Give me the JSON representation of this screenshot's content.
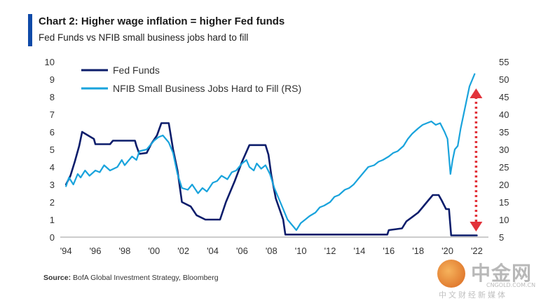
{
  "header": {
    "title": "Chart 2: Higher wage inflation = higher Fed funds",
    "subtitle": "Fed Funds vs NFIB small business jobs hard to fill"
  },
  "footer": {
    "source_label": "Source:",
    "source_text": "BofA Global Investment Strategy, Bloomberg"
  },
  "watermark": {
    "name": "中金网",
    "url": "CNGOLD.COM.CN",
    "tagline": "中文财经新媒体"
  },
  "colors": {
    "fed_funds": "#0c1d6b",
    "nfib": "#19a3dc",
    "arrow": "#e2323a",
    "accent": "#0f4aa8"
  },
  "chart_data": {
    "type": "line",
    "title": "Chart 2: Higher wage inflation = higher Fed funds",
    "subtitle": "Fed Funds vs NFIB small business jobs hard to fill",
    "x_ticks": [
      "'94",
      "'96",
      "'98",
      "'00",
      "'02",
      "'04",
      "'06",
      "'08",
      "'10",
      "'12",
      "'14",
      "'16",
      "'18",
      "'20",
      "'22"
    ],
    "x_tick_values": [
      1994,
      1996,
      1998,
      2000,
      2002,
      2004,
      2006,
      2008,
      2010,
      2012,
      2014,
      2016,
      2018,
      2020,
      2022
    ],
    "xlim": [
      1993.8,
      2022.6
    ],
    "y_left_ticks": [
      "0",
      "1",
      "2",
      "3",
      "4",
      "5",
      "6",
      "7",
      "8",
      "9",
      "10"
    ],
    "ylim_left": [
      0,
      10
    ],
    "y_right_ticks": [
      "5",
      "10",
      "15",
      "20",
      "25",
      "30",
      "35",
      "40",
      "45",
      "50",
      "55"
    ],
    "ylim_right": [
      5,
      55
    ],
    "grid": false,
    "legend_position": "top-left",
    "series": [
      {
        "name": "Fed Funds",
        "axis": "left",
        "points": [
          [
            1994.0,
            3.0
          ],
          [
            1994.3,
            3.5
          ],
          [
            1994.6,
            4.3
          ],
          [
            1994.9,
            5.2
          ],
          [
            1995.1,
            6.0
          ],
          [
            1995.5,
            5.8
          ],
          [
            1995.9,
            5.6
          ],
          [
            1996.0,
            5.3
          ],
          [
            1997.0,
            5.3
          ],
          [
            1997.2,
            5.5
          ],
          [
            1998.0,
            5.5
          ],
          [
            1998.7,
            5.5
          ],
          [
            1998.8,
            5.2
          ],
          [
            1999.0,
            4.75
          ],
          [
            1999.5,
            4.8
          ],
          [
            1999.8,
            5.3
          ],
          [
            2000.2,
            5.8
          ],
          [
            2000.5,
            6.5
          ],
          [
            2001.0,
            6.5
          ],
          [
            2001.3,
            5.0
          ],
          [
            2001.6,
            3.8
          ],
          [
            2001.9,
            2.0
          ],
          [
            2002.5,
            1.75
          ],
          [
            2002.9,
            1.25
          ],
          [
            2003.5,
            1.0
          ],
          [
            2004.5,
            1.0
          ],
          [
            2004.9,
            2.0
          ],
          [
            2005.5,
            3.2
          ],
          [
            2006.0,
            4.3
          ],
          [
            2006.5,
            5.25
          ],
          [
            2007.6,
            5.25
          ],
          [
            2007.8,
            4.7
          ],
          [
            2008.0,
            3.5
          ],
          [
            2008.3,
            2.2
          ],
          [
            2008.8,
            1.0
          ],
          [
            2008.95,
            0.15
          ],
          [
            2015.9,
            0.15
          ],
          [
            2016.0,
            0.4
          ],
          [
            2016.9,
            0.5
          ],
          [
            2017.2,
            0.9
          ],
          [
            2017.6,
            1.15
          ],
          [
            2018.0,
            1.4
          ],
          [
            2018.3,
            1.7
          ],
          [
            2018.6,
            2.0
          ],
          [
            2018.9,
            2.3
          ],
          [
            2019.0,
            2.4
          ],
          [
            2019.4,
            2.4
          ],
          [
            2019.6,
            2.1
          ],
          [
            2019.9,
            1.6
          ],
          [
            2020.1,
            1.6
          ],
          [
            2020.25,
            0.1
          ],
          [
            2022.0,
            0.1
          ]
        ]
      },
      {
        "name": "NFIB Small Business Jobs Hard to Fill (RS)",
        "axis": "right",
        "points": [
          [
            1994.0,
            19.5
          ],
          [
            1994.2,
            22.0
          ],
          [
            1994.5,
            20.0
          ],
          [
            1994.8,
            23.0
          ],
          [
            1995.0,
            22.0
          ],
          [
            1995.3,
            24.0
          ],
          [
            1995.6,
            22.5
          ],
          [
            1996.0,
            24.0
          ],
          [
            1996.3,
            23.5
          ],
          [
            1996.6,
            25.5
          ],
          [
            1997.0,
            24.0
          ],
          [
            1997.5,
            25.0
          ],
          [
            1997.8,
            27.0
          ],
          [
            1998.0,
            25.5
          ],
          [
            1998.5,
            28.0
          ],
          [
            1998.8,
            27.0
          ],
          [
            1999.0,
            29.5
          ],
          [
            1999.5,
            30.0
          ],
          [
            1999.8,
            31.5
          ],
          [
            2000.0,
            32.5
          ],
          [
            2000.3,
            33.5
          ],
          [
            2000.6,
            34.0
          ],
          [
            2001.0,
            32.0
          ],
          [
            2001.3,
            29.0
          ],
          [
            2001.6,
            23.0
          ],
          [
            2001.9,
            19.0
          ],
          [
            2002.3,
            18.5
          ],
          [
            2002.6,
            20.0
          ],
          [
            2003.0,
            17.5
          ],
          [
            2003.3,
            19.0
          ],
          [
            2003.6,
            18.0
          ],
          [
            2004.0,
            20.5
          ],
          [
            2004.3,
            21.0
          ],
          [
            2004.6,
            22.5
          ],
          [
            2005.0,
            21.5
          ],
          [
            2005.3,
            23.5
          ],
          [
            2005.6,
            24.0
          ],
          [
            2006.0,
            26.0
          ],
          [
            2006.3,
            27.0
          ],
          [
            2006.5,
            25.0
          ],
          [
            2006.8,
            24.0
          ],
          [
            2007.0,
            26.0
          ],
          [
            2007.3,
            24.5
          ],
          [
            2007.6,
            25.5
          ],
          [
            2007.9,
            23.0
          ],
          [
            2008.2,
            19.0
          ],
          [
            2008.5,
            16.0
          ],
          [
            2008.8,
            13.0
          ],
          [
            2009.1,
            10.0
          ],
          [
            2009.4,
            8.5
          ],
          [
            2009.7,
            7.0
          ],
          [
            2010.0,
            9.0
          ],
          [
            2010.3,
            10.0
          ],
          [
            2010.6,
            11.0
          ],
          [
            2011.0,
            12.0
          ],
          [
            2011.3,
            13.5
          ],
          [
            2011.6,
            14.0
          ],
          [
            2012.0,
            15.0
          ],
          [
            2012.3,
            16.5
          ],
          [
            2012.6,
            17.0
          ],
          [
            2013.0,
            18.5
          ],
          [
            2013.3,
            19.0
          ],
          [
            2013.6,
            20.0
          ],
          [
            2014.0,
            22.0
          ],
          [
            2014.3,
            23.5
          ],
          [
            2014.6,
            25.0
          ],
          [
            2015.0,
            25.5
          ],
          [
            2015.3,
            26.5
          ],
          [
            2015.6,
            27.0
          ],
          [
            2016.0,
            28.0
          ],
          [
            2016.3,
            29.0
          ],
          [
            2016.6,
            29.5
          ],
          [
            2017.0,
            31.0
          ],
          [
            2017.3,
            33.0
          ],
          [
            2017.6,
            34.5
          ],
          [
            2018.0,
            36.0
          ],
          [
            2018.3,
            37.0
          ],
          [
            2018.6,
            37.5
          ],
          [
            2018.9,
            38.0
          ],
          [
            2019.2,
            37.0
          ],
          [
            2019.5,
            37.5
          ],
          [
            2019.8,
            35.0
          ],
          [
            2020.0,
            33.0
          ],
          [
            2020.1,
            28.0
          ],
          [
            2020.2,
            23.0
          ],
          [
            2020.35,
            27.0
          ],
          [
            2020.5,
            30.0
          ],
          [
            2020.7,
            31.0
          ],
          [
            2020.9,
            36.0
          ],
          [
            2021.1,
            40.0
          ],
          [
            2021.3,
            44.0
          ],
          [
            2021.5,
            48.0
          ],
          [
            2021.7,
            50.0
          ],
          [
            2021.85,
            51.5
          ]
        ]
      }
    ],
    "annotations": [
      {
        "type": "double-arrow",
        "x": 2021.95,
        "y_from": 0.4,
        "y_to": 8.4,
        "axis": "left"
      }
    ]
  }
}
